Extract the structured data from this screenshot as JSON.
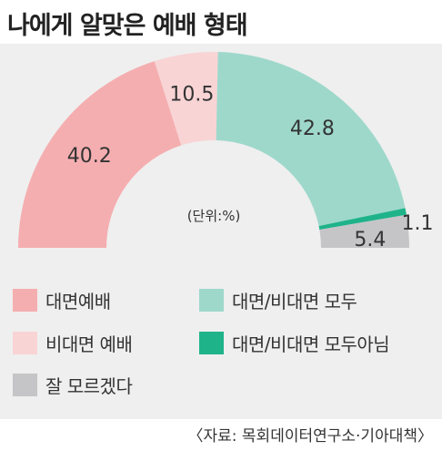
{
  "title": "나에게 알맞은 예배 형태",
  "unit_label": "(단위:%)",
  "source": "〈자료: 목회데이터연구소·기아대책〉",
  "chart_data": {
    "type": "pie",
    "subtype": "semi-donut",
    "title": "나에게 알맞은 예배 형태",
    "unit": "(단위:%)",
    "slices": [
      {
        "label": "대면예배",
        "value": 40.2,
        "display": "40.2",
        "color": "#f5aeb0"
      },
      {
        "label": "비대면 예배",
        "value": 10.5,
        "display": "10.5",
        "color": "#f9d4d5"
      },
      {
        "label": "대면/비대면 모두",
        "value": 42.8,
        "display": "42.8",
        "color": "#9ed8cb"
      },
      {
        "label": "대면/비대면 모두아님",
        "value": 1.1,
        "display": "1.1",
        "color": "#1fb38a"
      },
      {
        "label": "잘 모르겠다",
        "value": 5.4,
        "display": "5.4",
        "color": "#c5c5c8"
      }
    ],
    "legend_placement": "bottom"
  }
}
